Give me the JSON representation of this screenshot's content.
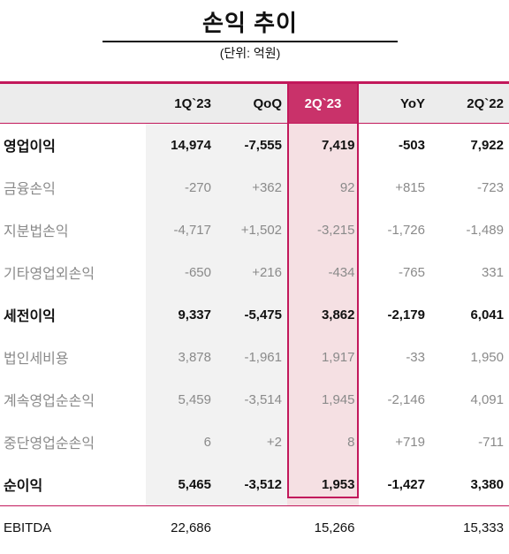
{
  "title": "손익 추이",
  "unit": "(단위: 억원)",
  "columns": [
    "1Q`23",
    "QoQ",
    "2Q`23",
    "YoY",
    "2Q`22"
  ],
  "rows": [
    {
      "label": "영업이익",
      "bold": true,
      "values": [
        "14,974",
        "-7,555",
        "7,419",
        "-503",
        "7,922"
      ]
    },
    {
      "label": "금융손익",
      "bold": false,
      "values": [
        "-270",
        "+362",
        "92",
        "+815",
        "-723"
      ]
    },
    {
      "label": "지분법손익",
      "bold": false,
      "values": [
        "-4,717",
        "+1,502",
        "-3,215",
        "-1,726",
        "-1,489"
      ]
    },
    {
      "label": "기타영업외손익",
      "bold": false,
      "values": [
        "-650",
        "+216",
        "-434",
        "-765",
        "331"
      ]
    },
    {
      "label": "세전이익",
      "bold": true,
      "values": [
        "9,337",
        "-5,475",
        "3,862",
        "-2,179",
        "6,041"
      ]
    },
    {
      "label": "법인세비용",
      "bold": false,
      "values": [
        "3,878",
        "-1,961",
        "1,917",
        "-33",
        "1,950"
      ]
    },
    {
      "label": "계속영업순손익",
      "bold": false,
      "values": [
        "5,459",
        "-3,514",
        "1,945",
        "-2,146",
        "4,091"
      ]
    },
    {
      "label": "중단영업순손익",
      "bold": false,
      "values": [
        "6",
        "+2",
        "8",
        "+719",
        "-711"
      ]
    },
    {
      "label": "순이익",
      "bold": true,
      "values": [
        "5,465",
        "-3,512",
        "1,953",
        "-1,427",
        "3,380"
      ]
    }
  ],
  "ebitda": {
    "label": "EBITDA",
    "values": [
      "22,686",
      "",
      "15,266",
      "",
      "15,333"
    ]
  },
  "colors": {
    "accent": "#c2185b",
    "highlight_header": "#c9326a",
    "highlight_cell": "#f5e0e3"
  }
}
